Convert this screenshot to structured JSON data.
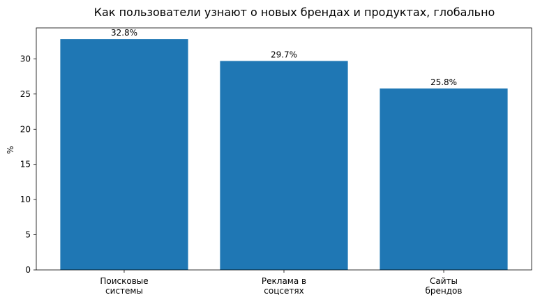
{
  "chart_data": {
    "type": "bar",
    "title": "Как пользователи узнают о новых брендах и продуктах, глобально",
    "ylabel": "%",
    "xlabel": "",
    "categories": [
      [
        "Поисковые",
        "системы"
      ],
      [
        "Реклама в",
        "соцсетях"
      ],
      [
        "Сайты",
        "брендов"
      ]
    ],
    "values": [
      32.8,
      29.7,
      25.8
    ],
    "data_labels": [
      "32.8%",
      "29.7%",
      "25.8%"
    ],
    "ylim": [
      0,
      34.4
    ],
    "yticks": [
      0,
      5,
      10,
      15,
      20,
      25,
      30
    ],
    "bar_color": "#1f77b4",
    "grid": false
  }
}
